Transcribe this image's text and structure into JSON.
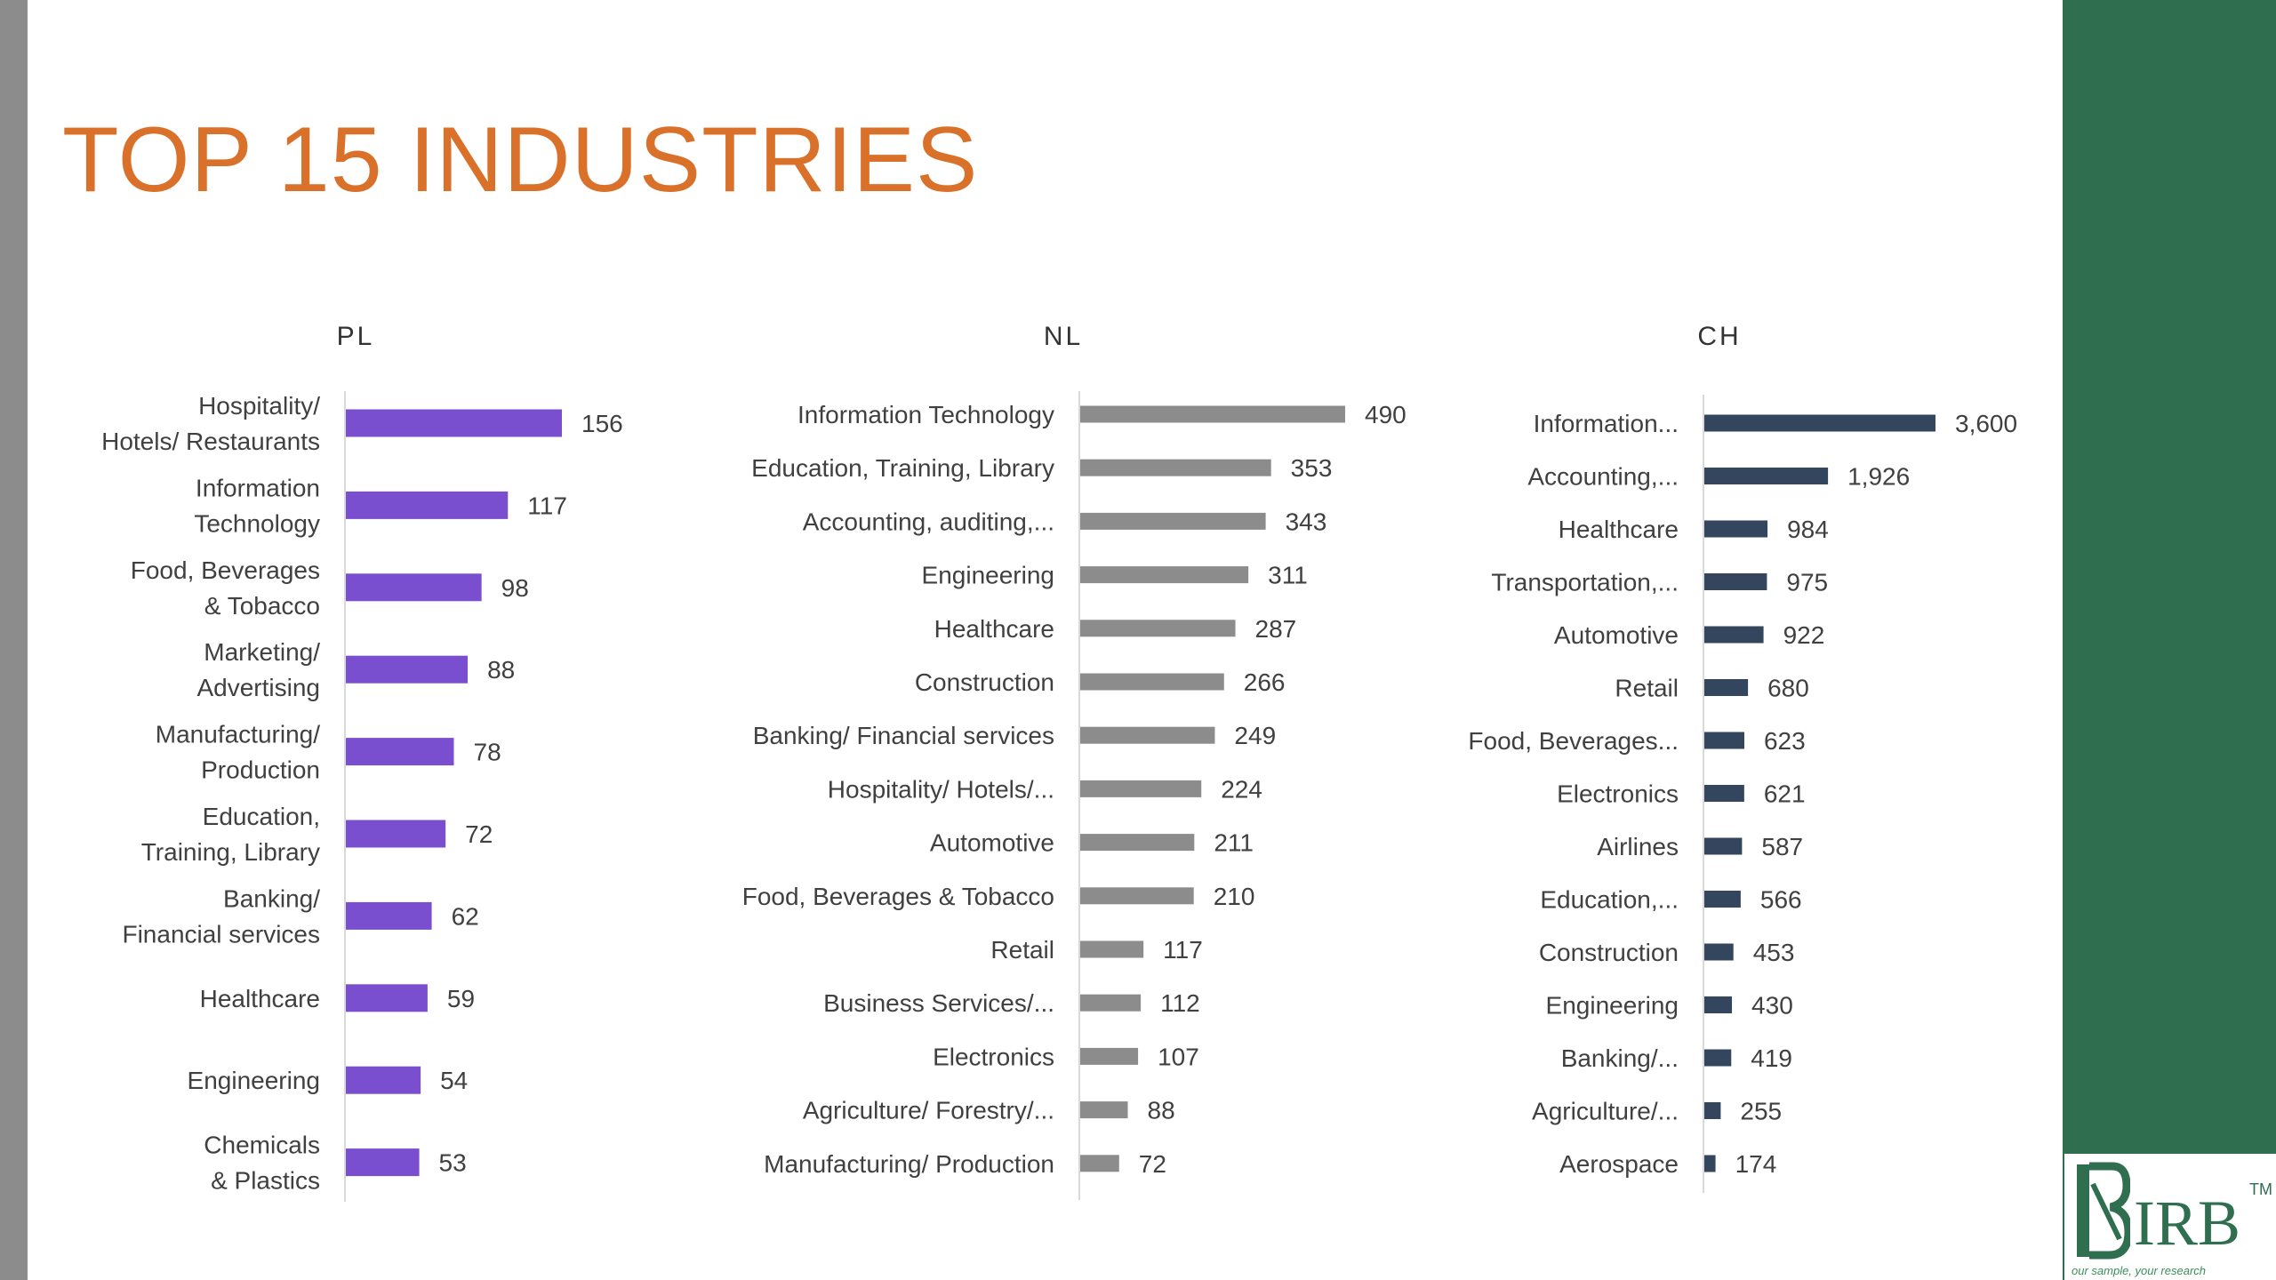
{
  "page": {
    "title": "TOP 15 INDUSTRIES"
  },
  "logo": {
    "text": "IRB",
    "tm": "TM",
    "tagline": "our sample, your research"
  },
  "chart_data": [
    {
      "type": "bar",
      "orientation": "horizontal",
      "title": "PL",
      "bar_color": "#7a4fcf",
      "categories": [
        "Hospitality/ Hotels/ Restaurants",
        "Information Technology",
        "Food, Beverages & Tobacco",
        "Marketing/ Advertising",
        "Manufacturing/ Production",
        "Education, Training, Library",
        "Banking/ Financial services",
        "Healthcare",
        "Engineering",
        "Chemicals & Plastics"
      ],
      "values": [
        156,
        117,
        98,
        88,
        78,
        72,
        62,
        59,
        54,
        53
      ],
      "value_labels": [
        "156",
        "117",
        "98",
        "88",
        "78",
        "72",
        "62",
        "59",
        "54",
        "53"
      ]
    },
    {
      "type": "bar",
      "orientation": "horizontal",
      "title": "NL",
      "bar_color": "#8c8c8c",
      "categories": [
        "Information Technology",
        "Education, Training, Library",
        "Accounting, auditing,...",
        "Engineering",
        "Healthcare",
        "Construction",
        "Banking/ Financial services",
        "Hospitality/ Hotels/...",
        "Automotive",
        "Food, Beverages & Tobacco",
        "Retail",
        "Business Services/...",
        "Electronics",
        "Agriculture/ Forestry/...",
        "Manufacturing/ Production"
      ],
      "values": [
        490,
        353,
        343,
        311,
        287,
        266,
        249,
        224,
        211,
        210,
        117,
        112,
        107,
        88,
        72
      ],
      "value_labels": [
        "490",
        "353",
        "343",
        "311",
        "287",
        "266",
        "249",
        "224",
        "211",
        "210",
        "117",
        "112",
        "107",
        "88",
        "72"
      ]
    },
    {
      "type": "bar",
      "orientation": "horizontal",
      "title": "CH",
      "bar_color": "#34465e",
      "categories": [
        "Information...",
        "Accounting,...",
        "Healthcare",
        "Transportation,...",
        "Automotive",
        "Retail",
        "Food, Beverages...",
        "Electronics",
        "Airlines",
        "Education,...",
        "Construction",
        "Engineering",
        "Banking/...",
        "Agriculture/...",
        "Aerospace"
      ],
      "values": [
        3600,
        1926,
        984,
        975,
        922,
        680,
        623,
        621,
        587,
        566,
        453,
        430,
        419,
        255,
        174
      ],
      "value_labels": [
        "3,600",
        "1,926",
        "984",
        "975",
        "922",
        "680",
        "623",
        "621",
        "587",
        "566",
        "453",
        "430",
        "419",
        "255",
        "174"
      ]
    }
  ]
}
